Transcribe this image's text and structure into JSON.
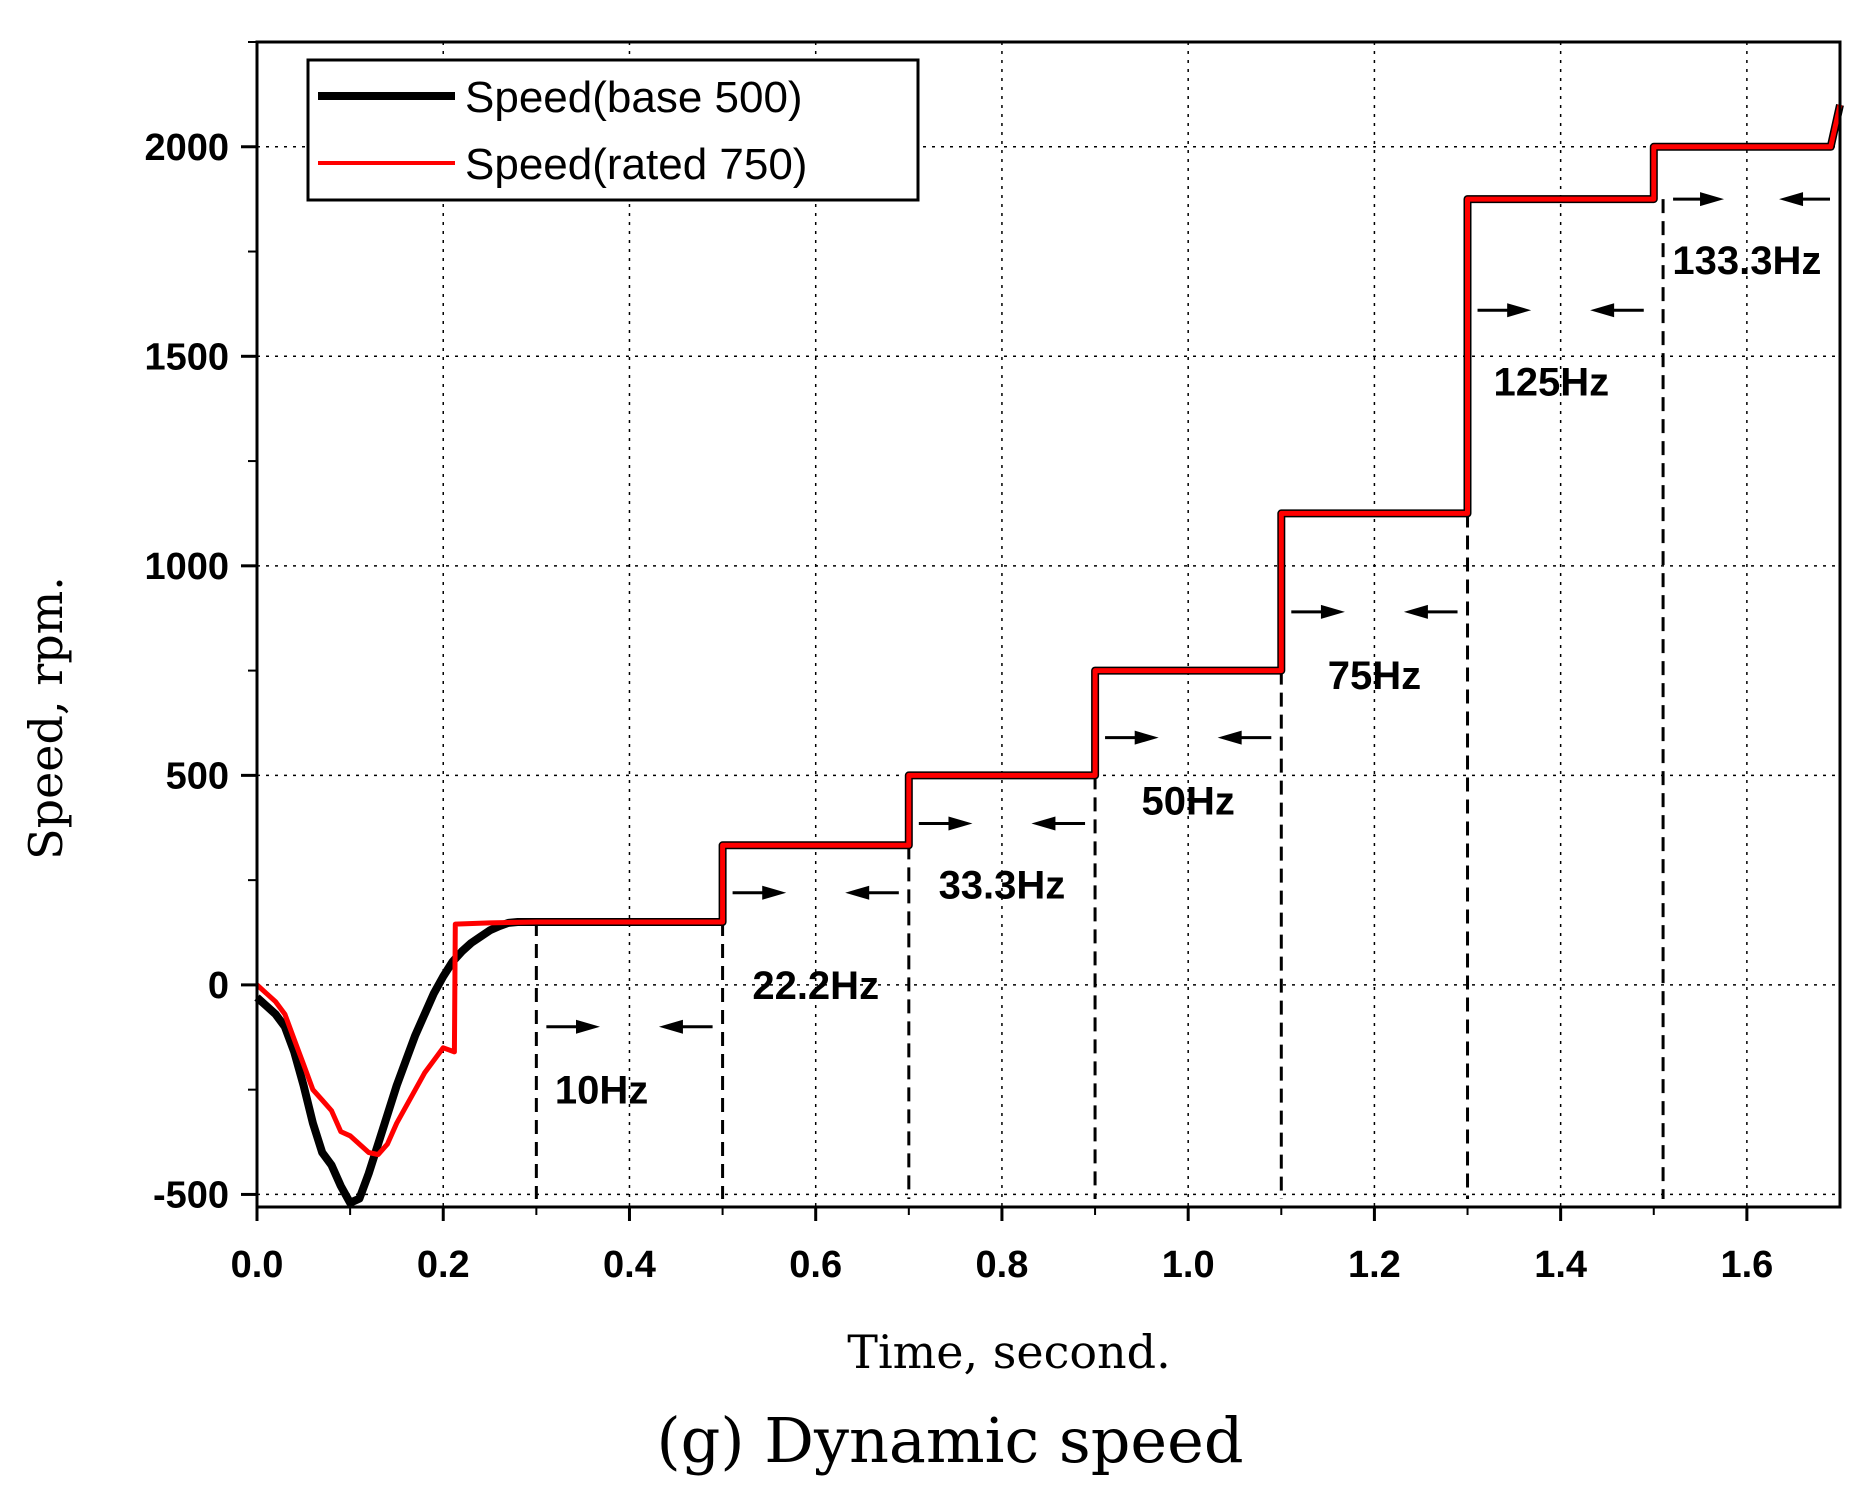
{
  "chart_data": {
    "type": "line",
    "xlabel": "Time, second.",
    "ylabel": "Speed, rpm.",
    "caption": "(g) Dynamic speed",
    "xlim": [
      0.0,
      1.7
    ],
    "ylim": [
      -530,
      2250
    ],
    "x_ticks": [
      0.0,
      0.2,
      0.4,
      0.6,
      0.8,
      1.0,
      1.2,
      1.4,
      1.6
    ],
    "x_tick_labels": [
      "0.0",
      "0.2",
      "0.4",
      "0.6",
      "0.8",
      "1.0",
      "1.2",
      "1.4",
      "1.6"
    ],
    "y_ticks": [
      -500,
      0,
      500,
      1000,
      1500,
      2000
    ],
    "y_tick_labels": [
      "-500",
      "0",
      "500",
      "1000",
      "1500",
      "2000"
    ],
    "grid": true,
    "legend_position": "top-left",
    "series": [
      {
        "name": "Speed(base 500)",
        "color": "#000000",
        "x": [
          0.0,
          0.01,
          0.02,
          0.03,
          0.04,
          0.05,
          0.06,
          0.07,
          0.08,
          0.09,
          0.1,
          0.11,
          0.12,
          0.13,
          0.14,
          0.15,
          0.16,
          0.17,
          0.18,
          0.19,
          0.2,
          0.21,
          0.22,
          0.23,
          0.24,
          0.25,
          0.26,
          0.27,
          0.28,
          0.3,
          0.4,
          0.5,
          0.5,
          0.7,
          0.7,
          0.9,
          0.9,
          1.1,
          1.1,
          1.3,
          1.3,
          1.5,
          1.5,
          1.69,
          1.7
        ],
        "y": [
          -30,
          -50,
          -70,
          -100,
          -160,
          -240,
          -330,
          -400,
          -430,
          -480,
          -520,
          -510,
          -450,
          -380,
          -310,
          -240,
          -180,
          -120,
          -70,
          -20,
          20,
          55,
          80,
          100,
          115,
          130,
          140,
          148,
          150,
          150,
          150,
          150,
          333,
          333,
          500,
          500,
          750,
          750,
          1125,
          1125,
          1875,
          1875,
          2000,
          2000,
          2100
        ]
      },
      {
        "name": "Speed(rated 750)",
        "color": "#ff0000",
        "x": [
          0.0,
          0.01,
          0.02,
          0.03,
          0.04,
          0.05,
          0.06,
          0.07,
          0.08,
          0.09,
          0.1,
          0.11,
          0.12,
          0.13,
          0.14,
          0.15,
          0.16,
          0.17,
          0.18,
          0.19,
          0.2,
          0.212,
          0.213,
          0.25,
          0.3,
          0.4,
          0.5,
          0.5,
          0.7,
          0.7,
          0.9,
          0.9,
          1.1,
          1.1,
          1.3,
          1.3,
          1.5,
          1.5,
          1.69,
          1.7
        ],
        "y": [
          0,
          -20,
          -40,
          -70,
          -130,
          -190,
          -250,
          -275,
          -300,
          -350,
          -360,
          -380,
          -400,
          -405,
          -380,
          -330,
          -290,
          -250,
          -210,
          -180,
          -150,
          -160,
          145,
          148,
          150,
          150,
          150,
          333,
          333,
          500,
          500,
          750,
          750,
          1125,
          1125,
          1875,
          1875,
          2000,
          2000,
          2100
        ]
      }
    ],
    "annotations": [
      {
        "label": "10Hz",
        "x": 0.37,
        "y": -250,
        "span": [
          0.3,
          0.5
        ],
        "arrow_y": -100
      },
      {
        "label": "22.2Hz",
        "x": 0.6,
        "y": 0,
        "span": [
          0.5,
          0.7
        ],
        "arrow_y": 220
      },
      {
        "label": "33.3Hz",
        "x": 0.8,
        "y": 240,
        "span": [
          0.7,
          0.9
        ],
        "arrow_y": 385
      },
      {
        "label": "50Hz",
        "x": 1.0,
        "y": 440,
        "span": [
          0.9,
          1.1
        ],
        "arrow_y": 590
      },
      {
        "label": "75Hz",
        "x": 1.2,
        "y": 740,
        "span": [
          1.1,
          1.3
        ],
        "arrow_y": 890
      },
      {
        "label": "125Hz",
        "x": 1.39,
        "y": 1440,
        "span": [
          1.3,
          1.5
        ],
        "arrow_y": 1610
      },
      {
        "label": "133.3Hz",
        "x": 1.6,
        "y": 1730,
        "span": [
          1.51,
          1.7
        ],
        "arrow_y": 1875
      }
    ],
    "dashed_markers": [
      {
        "x": 0.3,
        "y_top": 150
      },
      {
        "x": 0.5,
        "y_top": 150
      },
      {
        "x": 0.7,
        "y_top": 333
      },
      {
        "x": 0.9,
        "y_top": 500
      },
      {
        "x": 1.1,
        "y_top": 750
      },
      {
        "x": 1.3,
        "y_top": 1125
      },
      {
        "x": 1.51,
        "y_top": 1875
      }
    ]
  }
}
